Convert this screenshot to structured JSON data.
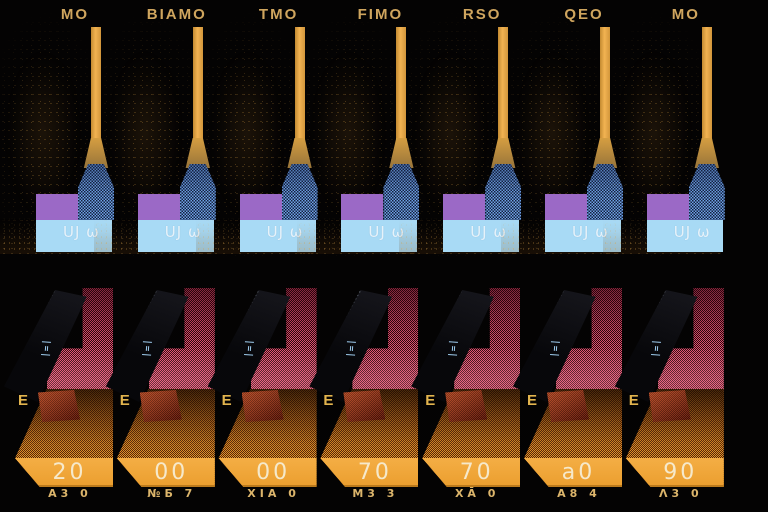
{
  "panels": [
    {
      "label": "MO",
      "value": "20",
      "code": "A3 0"
    },
    {
      "label": "BIAMO",
      "value": "00",
      "code": "№Б 7"
    },
    {
      "label": "TMO",
      "value": "00",
      "code": "XIA 0"
    },
    {
      "label": "FIMO",
      "value": "70",
      "code": "M3 3"
    },
    {
      "label": "RSO",
      "value": "70",
      "code": "XĀ 0"
    },
    {
      "label": "QEO",
      "value": "a0",
      "code": "A8 4"
    },
    {
      "label": "MO",
      "value": "90",
      "code": "Λ3 0"
    }
  ],
  "shared": {
    "e_label": "E",
    "box_glyphs": "UJ ω",
    "slab_glyphs": "|=|"
  },
  "colors": {
    "background": "#040303",
    "label_gold": "#cfa55e",
    "bar_orange": "#f2b352",
    "dither_blue": "#6fa2e6",
    "purple": "#9b69c6",
    "light_blue": "#a8daf5",
    "red_pink": "#dd5470",
    "amber": "#f1a73c",
    "number_cream": "#f6edd3",
    "code_gold": "#dcb56b",
    "e_gold": "#e2b44e",
    "glyph_blue": "#9cc9ea"
  }
}
